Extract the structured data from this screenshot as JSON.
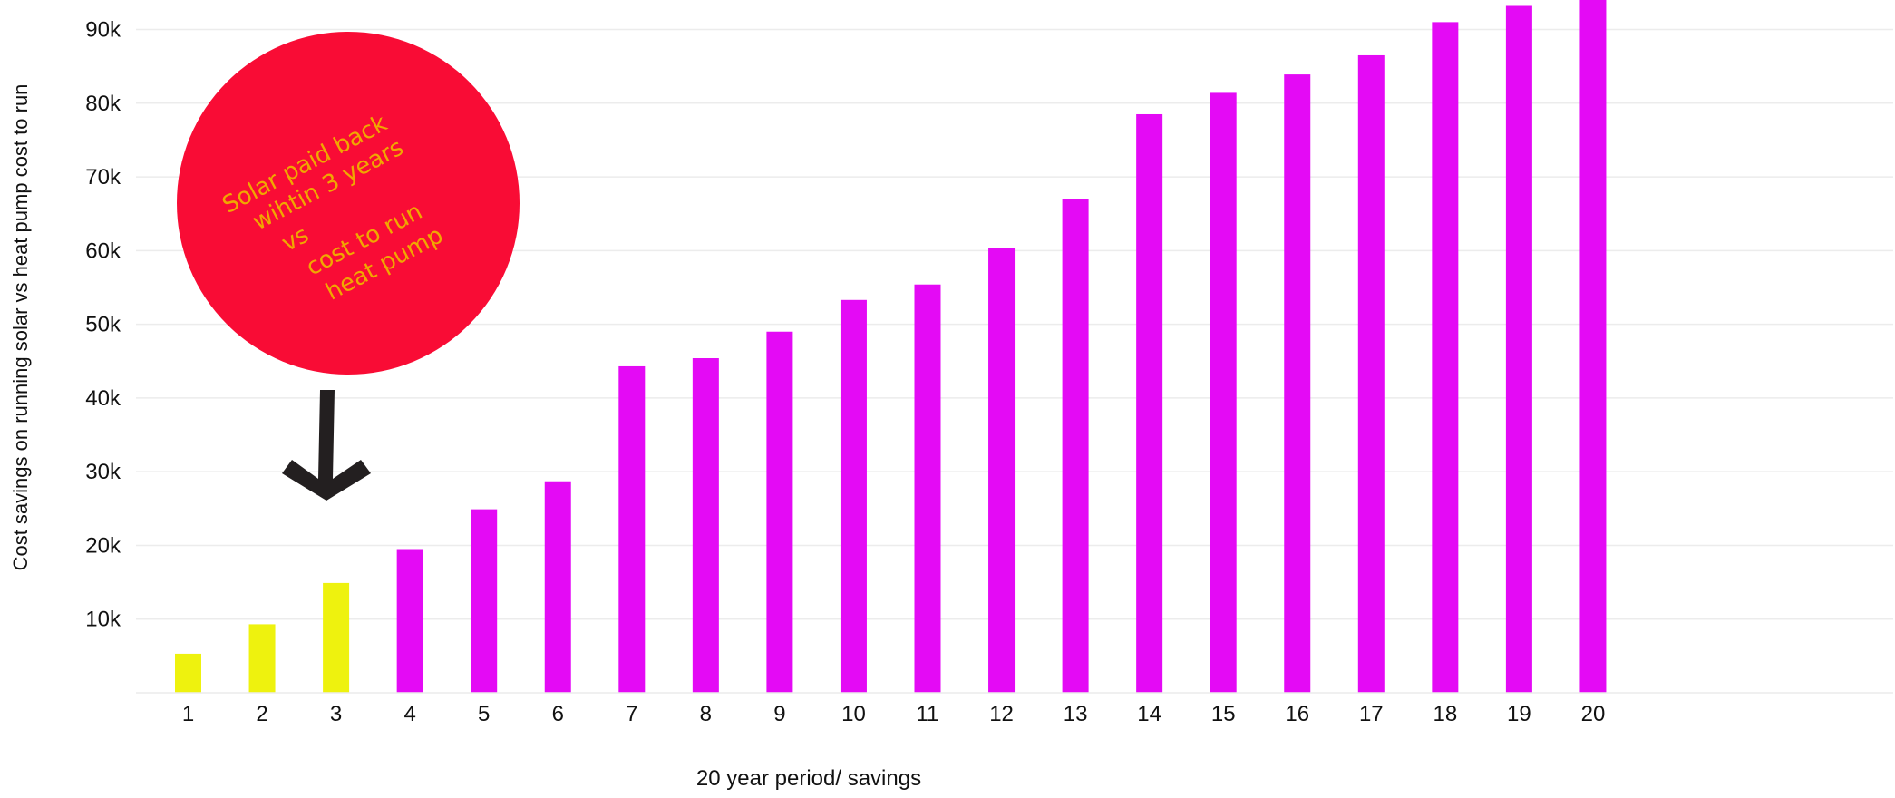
{
  "chart_data": {
    "type": "bar",
    "title": "",
    "xlabel": "20 year period/ savings",
    "ylabel": "Cost savings on running solar vs heat pump cost to run",
    "categories": [
      "1",
      "2",
      "3",
      "4",
      "5",
      "6",
      "7",
      "8",
      "9",
      "10",
      "11",
      "12",
      "13",
      "14",
      "15",
      "16",
      "17",
      "18",
      "19",
      "20"
    ],
    "values": [
      5300,
      9300,
      14900,
      19500,
      24900,
      28700,
      44300,
      45400,
      49000,
      53300,
      55400,
      60300,
      67000,
      78500,
      81400,
      83900,
      86500,
      91000,
      93200,
      95500
    ],
    "ytick_values": [
      10000,
      20000,
      30000,
      40000,
      50000,
      60000,
      70000,
      80000,
      90000
    ],
    "ytick_labels": [
      "10k",
      "20k",
      "30k",
      "40k",
      "50k",
      "60k",
      "70k",
      "80k",
      "90k"
    ],
    "ylim": [
      0,
      94000
    ],
    "grid": true,
    "legend": "none",
    "colors": {
      "payback": "#eef20e",
      "savings": "#e40af5",
      "grid": "#ececec",
      "axis_text": "#111111",
      "bubble": "#f90c35",
      "bubble_text": "#f0a800",
      "arrow": "#231f20"
    },
    "payback_years": 3,
    "annotation": {
      "lines": [
        "Solar paid back",
        "wihtin 3 years",
        "vs",
        "cost to run",
        "heat pump"
      ]
    },
    "annotation_arrow_icon": "arrow-down-icon"
  }
}
